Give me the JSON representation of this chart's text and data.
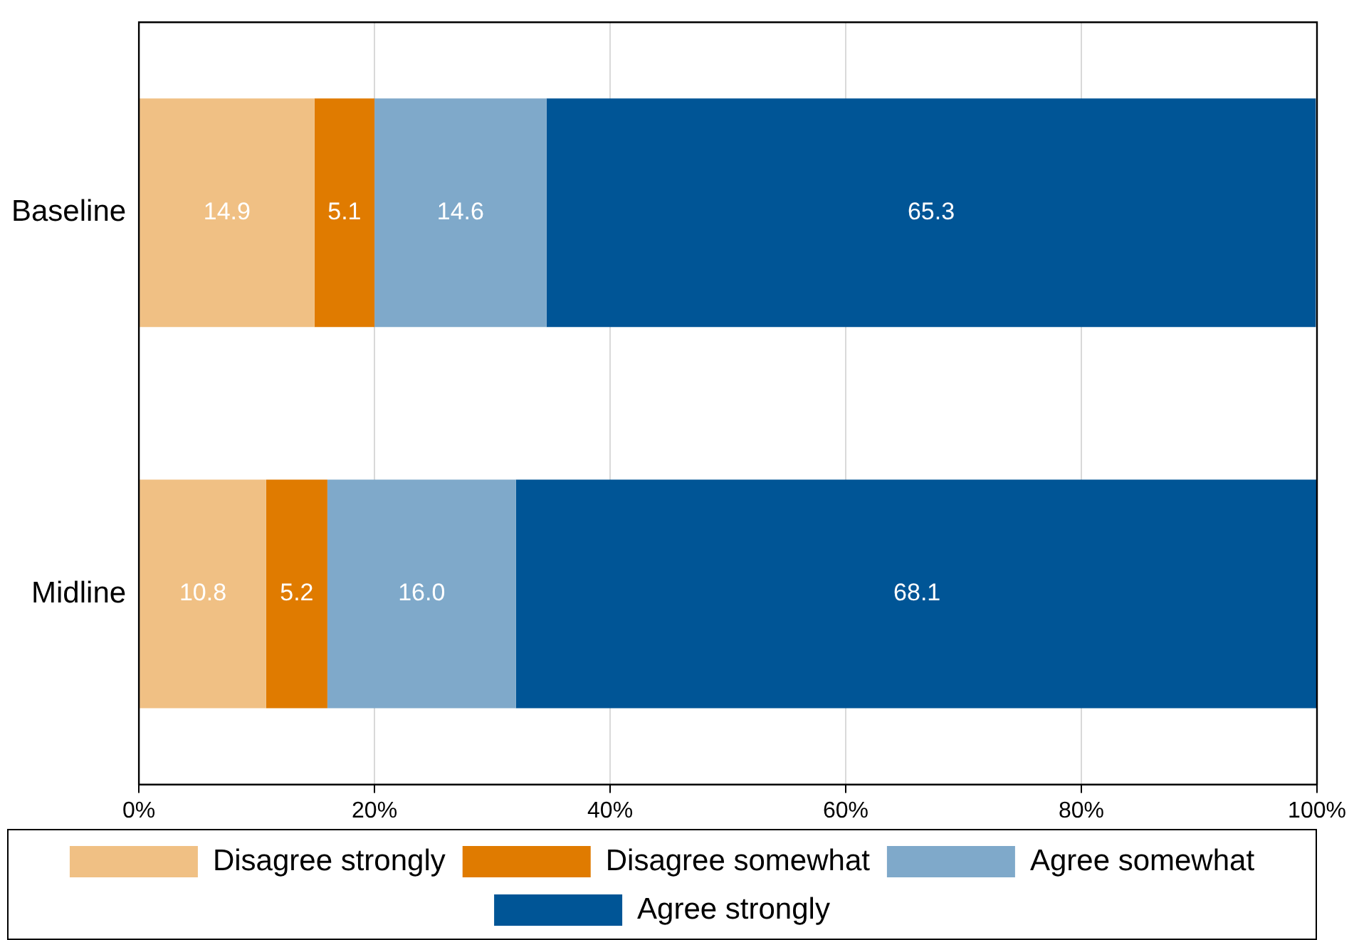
{
  "chart_data": {
    "type": "bar",
    "orientation": "horizontal",
    "stacked": true,
    "categories": [
      "Baseline",
      "Midline"
    ],
    "series": [
      {
        "name": "Disagree strongly",
        "color": "#f0c084",
        "values": [
          14.9,
          10.8
        ],
        "value_labels": [
          "14.9",
          "10.8"
        ]
      },
      {
        "name": "Disagree somewhat",
        "color": "#e07b00",
        "values": [
          5.1,
          5.2
        ],
        "value_labels": [
          "5.1",
          "5.2"
        ]
      },
      {
        "name": "Agree somewhat",
        "color": "#7fa9ca",
        "values": [
          14.6,
          16.0
        ],
        "value_labels": [
          "14.6",
          "16.0"
        ]
      },
      {
        "name": "Agree strongly",
        "color": "#005596",
        "values": [
          65.3,
          68.1
        ],
        "value_labels": [
          "65.3",
          "68.1"
        ]
      }
    ],
    "xlim": [
      0,
      100
    ],
    "xticks": [
      {
        "value": 0,
        "label": "0%"
      },
      {
        "value": 20,
        "label": "20%"
      },
      {
        "value": 40,
        "label": "40%"
      },
      {
        "value": 60,
        "label": "60%"
      },
      {
        "value": 80,
        "label": "80%"
      },
      {
        "value": 100,
        "label": "100%"
      }
    ],
    "grid": "x",
    "legend": "bottom"
  }
}
